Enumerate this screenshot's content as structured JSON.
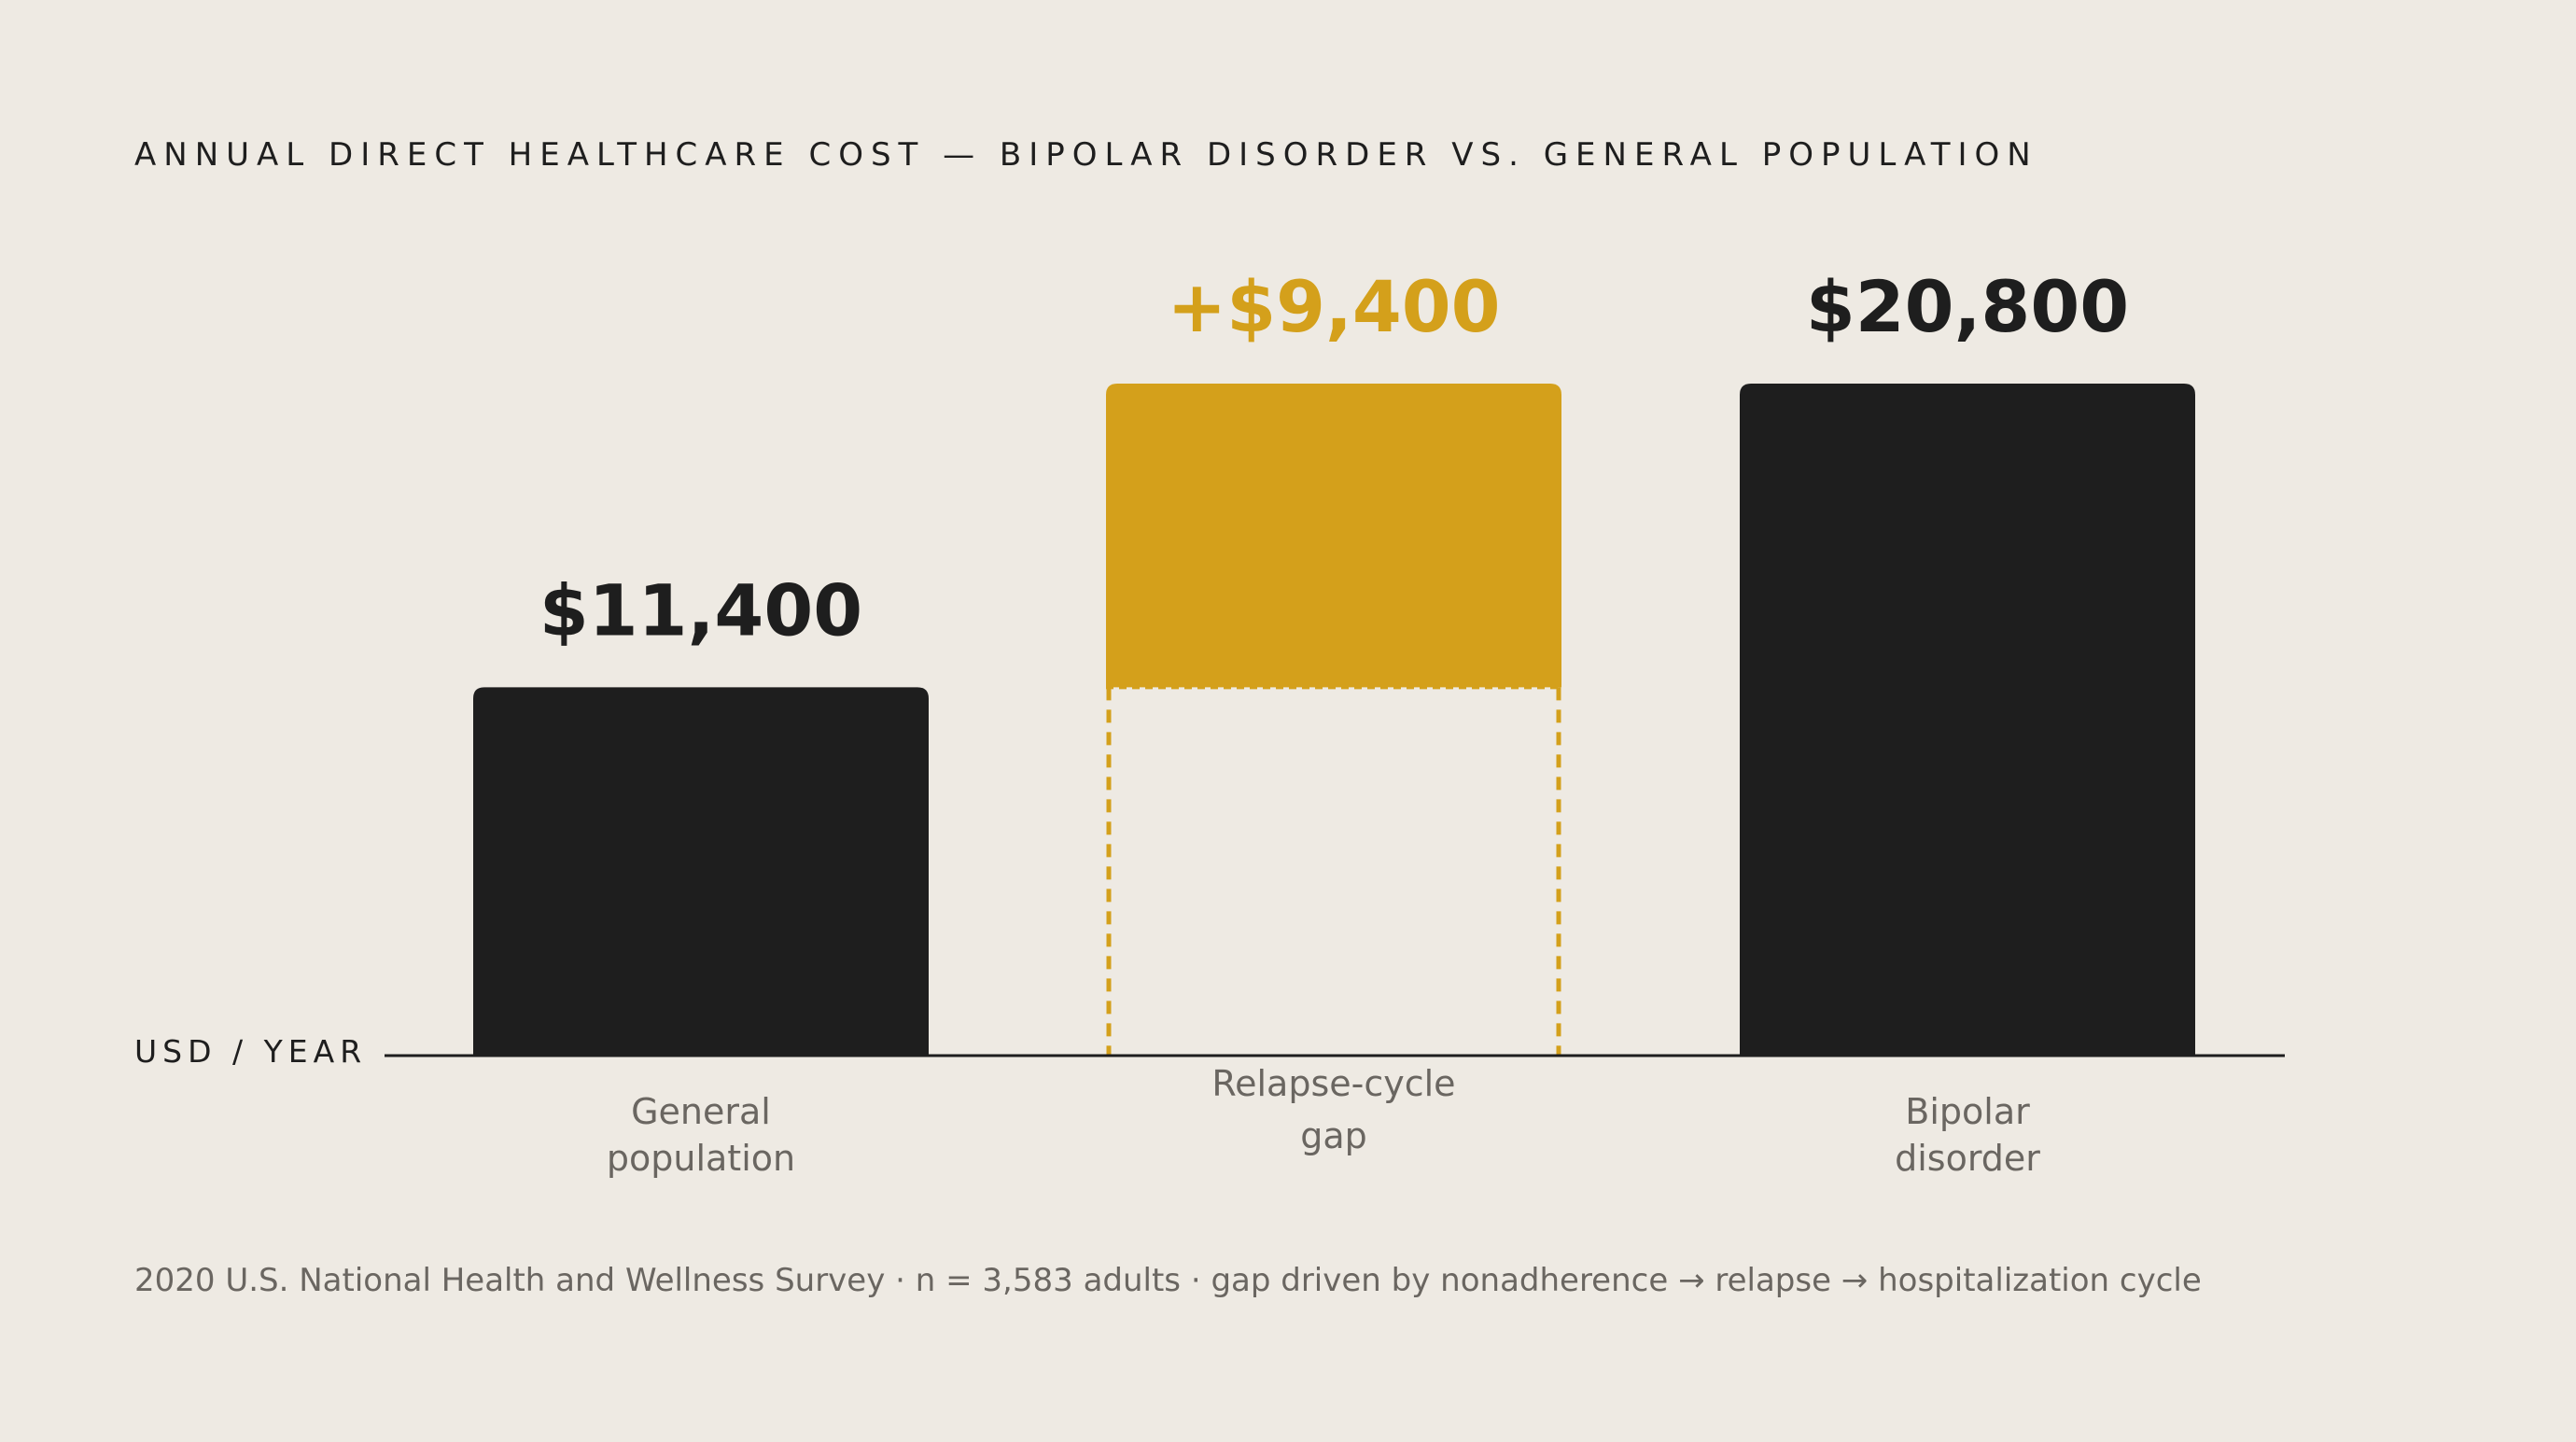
{
  "title": "ANNUAL DIRECT HEALTHCARE COST — BIPOLAR DISORDER VS. GENERAL POPULATION",
  "unit_label": "USD / YEAR",
  "footnote": "2020 U.S. National Health and Wellness Survey · n = 3,583 adults · gap driven by nonadherence → relapse → hospitalization cycle",
  "colors": {
    "background": "#EEEAE3",
    "bar_dark": "#1E1E1E",
    "accent_gold": "#D4A01B",
    "muted_text": "#6A6661"
  },
  "chart_data": {
    "type": "bar",
    "subtype": "waterfall",
    "title": "ANNUAL DIRECT HEALTHCARE COST — BIPOLAR DISORDER VS. GENERAL POPULATION",
    "ylabel": "USD / YEAR",
    "ylim": [
      0,
      20800
    ],
    "grid": false,
    "categories": [
      [
        "General",
        "population"
      ],
      [
        "Relapse-cycle",
        "gap"
      ],
      [
        "Bipolar",
        "disorder"
      ]
    ],
    "bars": [
      {
        "category": "General population",
        "base": 0,
        "value": 11400,
        "label": "$11,400",
        "color": "#1E1E1E"
      },
      {
        "category": "Relapse-cycle gap",
        "base": 11400,
        "value": 9400,
        "label": "+$9,400",
        "color": "#D4A01B",
        "dashed_outline_below": true
      },
      {
        "category": "Bipolar disorder",
        "base": 0,
        "value": 20800,
        "label": "$20,800",
        "color": "#1E1E1E"
      }
    ]
  }
}
